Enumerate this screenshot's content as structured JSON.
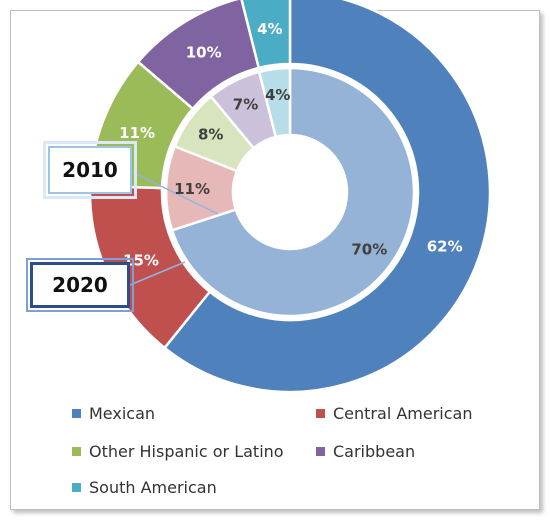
{
  "chart_data": {
    "type": "pie",
    "variant": "doughnut",
    "categories": [
      "Mexican",
      "Central American",
      "Other Hispanic or Latino",
      "Caribbean",
      "South American"
    ],
    "colors": [
      "#4f81bd",
      "#c0504d",
      "#9bbb59",
      "#8064a2",
      "#4bacc6"
    ],
    "inner_colors": [
      "#95b3d7",
      "#e6b9b8",
      "#d7e4bd",
      "#ccc1da",
      "#b7dde8"
    ],
    "series": [
      {
        "name": "2020",
        "ring": "outer",
        "values": [
          62,
          15,
          11,
          10,
          4
        ],
        "labels": [
          "62%",
          "15%",
          "11%",
          "10%",
          "4%"
        ]
      },
      {
        "name": "2010",
        "ring": "inner",
        "values": [
          70,
          11,
          8,
          7,
          4
        ],
        "labels": [
          "70%",
          "11%",
          "8%",
          "7%",
          "4%"
        ]
      }
    ],
    "legend_position": "bottom"
  },
  "callouts": {
    "inner": "2010",
    "outer": "2020"
  },
  "legend": {
    "items": [
      {
        "label": "Mexican",
        "color": "#4f81bd"
      },
      {
        "label": "Central American",
        "color": "#c0504d"
      },
      {
        "label": "Other Hispanic or Latino",
        "color": "#9bbb59"
      },
      {
        "label": "Caribbean",
        "color": "#8064a2"
      },
      {
        "label": "South American",
        "color": "#4bacc6"
      }
    ]
  }
}
